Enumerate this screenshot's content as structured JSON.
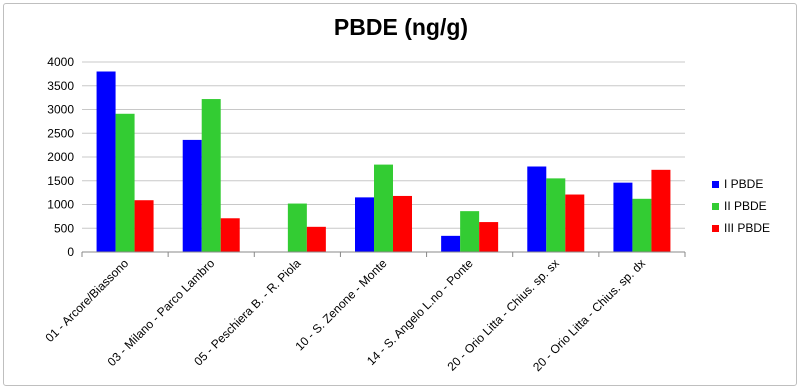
{
  "chart_data": {
    "type": "bar",
    "title": "PBDE (ng/g)",
    "xlabel": "",
    "ylabel": "",
    "ylim": [
      0,
      4000
    ],
    "yticks": [
      0,
      500,
      1000,
      1500,
      2000,
      2500,
      3000,
      3500,
      4000
    ],
    "grid": true,
    "legend_position": "right",
    "categories": [
      "01 - Arcore/Biassono",
      "03 - Milano - Parco Lambro",
      "05 - Peschiera B. - R. Piola",
      "10 - S. Zenone - Monte",
      "14 - S. Angelo L.no - Ponte",
      "20 - Orio Litta - Chius. sp. sx",
      "20 - Orio Litta - Chius. sp. dx"
    ],
    "series": [
      {
        "name": "I PBDE",
        "color": "#0000ff",
        "values": [
          3800,
          2360,
          0,
          1150,
          340,
          1800,
          1460
        ]
      },
      {
        "name": "II PBDE",
        "color": "#33cc33",
        "values": [
          2910,
          3220,
          1020,
          1840,
          860,
          1550,
          1120
        ]
      },
      {
        "name": "III PBDE",
        "color": "#ff0000",
        "values": [
          1090,
          710,
          530,
          1180,
          630,
          1210,
          1730
        ]
      }
    ]
  }
}
